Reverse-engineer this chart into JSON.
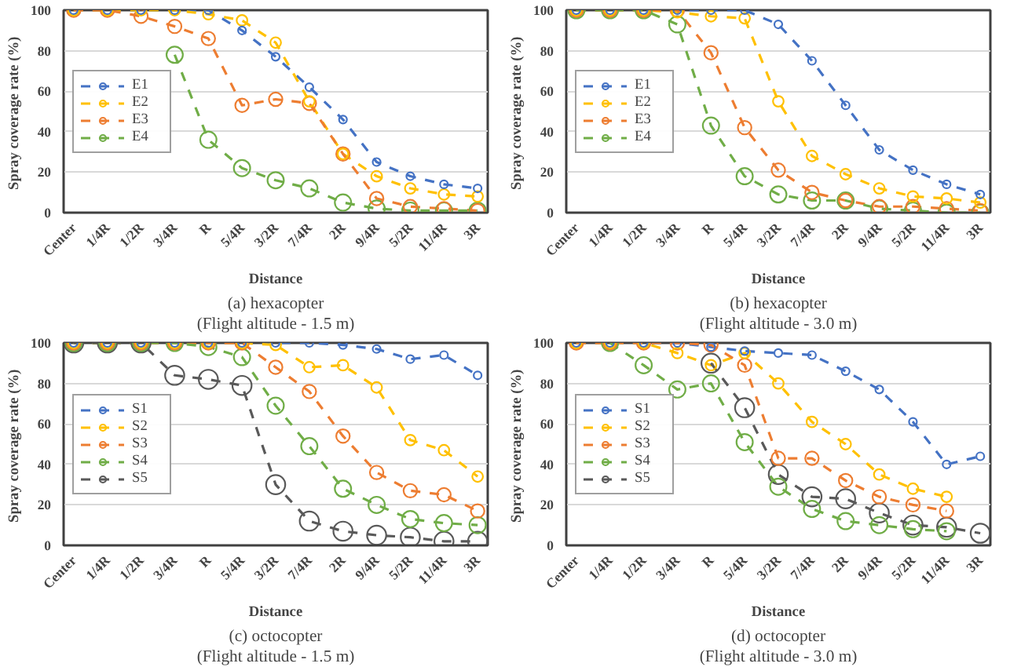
{
  "chart_data": [
    {
      "type": "line",
      "xlabel": "Distance",
      "ylabel": "Spray coverage rate  (%)",
      "annotations": [
        "(a) hexacopter",
        "(Flight altitude - 1.5 m)"
      ],
      "categories": [
        "Center",
        "1/4R",
        "1/2R",
        "3/4R",
        "R",
        "5/4R",
        "3/2R",
        "7/4R",
        "2R",
        "9/4R",
        "5/2R",
        "11/4R",
        "3R"
      ],
      "ylim": [
        0,
        100
      ],
      "yticks": [
        0,
        20,
        40,
        60,
        80,
        100
      ],
      "grid": "y",
      "legend": "left",
      "marker": "circle",
      "line_style": "dashed",
      "series": [
        {
          "name": "E1",
          "color": "#4472c4",
          "values": [
            100,
            100,
            100,
            100,
            100,
            90,
            77,
            62,
            46,
            25,
            18,
            14,
            12
          ]
        },
        {
          "name": "E2",
          "color": "#ffc000",
          "values": [
            100,
            100,
            100,
            100,
            98,
            95,
            84,
            55,
            29,
            18,
            12,
            9,
            8
          ]
        },
        {
          "name": "E3",
          "color": "#ed7d31",
          "values": [
            100,
            100,
            97,
            92,
            86,
            53,
            56,
            54,
            29,
            7,
            3,
            2,
            1
          ]
        },
        {
          "name": "E4",
          "color": "#70ad47",
          "values": [
            null,
            null,
            null,
            78,
            36,
            22,
            16,
            12,
            5,
            2,
            1,
            1,
            1
          ]
        }
      ]
    },
    {
      "type": "line",
      "xlabel": "Distance",
      "ylabel": "Spray coverage rate  (%)",
      "annotations": [
        "(b) hexacopter",
        "(Flight altitude - 3.0 m)"
      ],
      "categories": [
        "Center",
        "1/4R",
        "1/2R",
        "3/4R",
        "R",
        "5/4R",
        "3/2R",
        "7/4R",
        "2R",
        "9/4R",
        "5/2R",
        "11/4R",
        "3R"
      ],
      "ylim": [
        0,
        100
      ],
      "yticks": [
        0,
        20,
        40,
        60,
        80,
        100
      ],
      "grid": "y",
      "legend": "left",
      "marker": "circle",
      "line_style": "dashed",
      "series": [
        {
          "name": "E1",
          "color": "#4472c4",
          "values": [
            100,
            100,
            100,
            100,
            100,
            100,
            93,
            75,
            53,
            31,
            21,
            14,
            9
          ]
        },
        {
          "name": "E2",
          "color": "#ffc000",
          "values": [
            100,
            100,
            100,
            99,
            97,
            96,
            55,
            28,
            19,
            12,
            8,
            7,
            5
          ]
        },
        {
          "name": "E3",
          "color": "#ed7d31",
          "values": [
            100,
            100,
            100,
            100,
            79,
            42,
            21,
            10,
            6,
            3,
            3,
            2,
            1
          ]
        },
        {
          "name": "E4",
          "color": "#70ad47",
          "values": [
            100,
            100,
            100,
            93,
            43,
            18,
            9,
            6,
            6,
            2,
            1,
            0,
            0
          ]
        }
      ]
    },
    {
      "type": "line",
      "xlabel": "Distance",
      "ylabel": "Spray coverage rate  (%)",
      "annotations": [
        "(c) octocopter",
        "(Flight altitude - 1.5 m)"
      ],
      "categories": [
        "Center",
        "1/4R",
        "1/2R",
        "3/4R",
        "R",
        "5/4R",
        "3/2R",
        "7/4R",
        "2R",
        "9/4R",
        "5/2R",
        "11/4R",
        "3R"
      ],
      "ylim": [
        0,
        100
      ],
      "yticks": [
        0,
        20,
        40,
        60,
        80,
        100
      ],
      "grid": "y",
      "legend": "left",
      "marker": "circle",
      "line_style": "dashed",
      "series": [
        {
          "name": "S1",
          "color": "#4472c4",
          "values": [
            100,
            100,
            100,
            100,
            100,
            100,
            100,
            100,
            99,
            97,
            92,
            94,
            84
          ]
        },
        {
          "name": "S2",
          "color": "#ffc000",
          "values": [
            100,
            100,
            100,
            100,
            100,
            100,
            99,
            88,
            89,
            78,
            52,
            47,
            34
          ]
        },
        {
          "name": "S3",
          "color": "#ed7d31",
          "values": [
            100,
            100,
            100,
            100,
            100,
            100,
            88,
            76,
            54,
            36,
            27,
            25,
            17
          ]
        },
        {
          "name": "S4",
          "color": "#70ad47",
          "values": [
            100,
            100,
            100,
            100,
            98,
            93,
            69,
            49,
            28,
            20,
            13,
            11,
            10
          ]
        },
        {
          "name": "S5",
          "color": "#595959",
          "values": [
            100,
            100,
            100,
            84,
            82,
            79,
            30,
            12,
            7,
            5,
            4,
            2,
            2
          ]
        }
      ]
    },
    {
      "type": "line",
      "xlabel": "Distance",
      "ylabel": "Spray coverage rate  (%)",
      "annotations": [
        "(d) octocopter",
        "(Flight altitude - 3.0 m)"
      ],
      "categories": [
        "Center",
        "1/4R",
        "1/2R",
        "3/4R",
        "R",
        "5/4R",
        "3/2R",
        "7/4R",
        "2R",
        "9/4R",
        "5/2R",
        "11/4R",
        "3R"
      ],
      "ylim": [
        0,
        100
      ],
      "yticks": [
        0,
        20,
        40,
        60,
        80,
        100
      ],
      "grid": "y",
      "legend": "left",
      "marker": "circle",
      "line_style": "dashed",
      "series": [
        {
          "name": "S1",
          "color": "#4472c4",
          "values": [
            100,
            100,
            100,
            100,
            98,
            96,
            95,
            94,
            86,
            77,
            61,
            40,
            44
          ]
        },
        {
          "name": "S2",
          "color": "#ffc000",
          "values": [
            100,
            100,
            100,
            95,
            89,
            95,
            80,
            61,
            50,
            35,
            28,
            24,
            null
          ]
        },
        {
          "name": "S3",
          "color": "#ed7d31",
          "values": [
            100,
            100,
            100,
            100,
            99,
            89,
            43,
            43,
            32,
            24,
            20,
            17,
            null
          ]
        },
        {
          "name": "S4",
          "color": "#70ad47",
          "values": [
            null,
            100,
            89,
            77,
            80,
            51,
            29,
            18,
            12,
            10,
            8,
            7,
            null
          ]
        },
        {
          "name": "S5",
          "color": "#595959",
          "values": [
            null,
            null,
            null,
            null,
            90,
            68,
            35,
            24,
            23,
            16,
            10,
            9,
            6
          ]
        }
      ]
    }
  ]
}
